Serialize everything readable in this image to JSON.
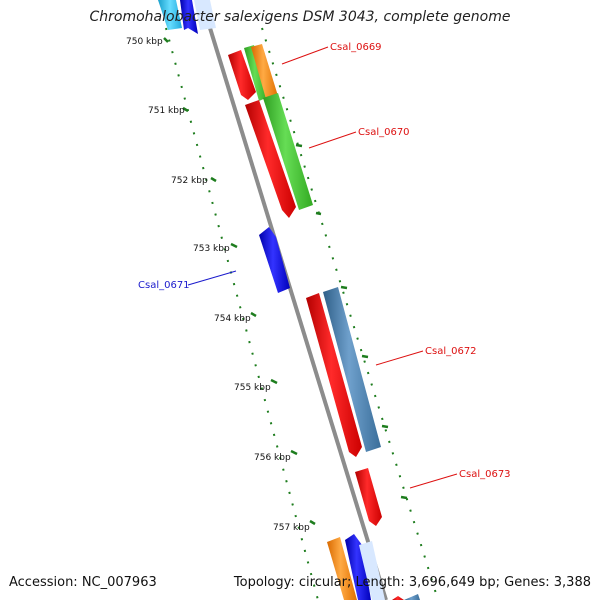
{
  "header": {
    "title": "Chromohalobacter salexigens DSM 3043, complete genome"
  },
  "footer": {
    "accession": "Accession: NC_007963",
    "summary": "Topology: circular; Length: 3,696,649 bp; Genes: 3,388"
  },
  "colors": {
    "backbone": "#8c8c8c",
    "tick_green": "#1e7d1e",
    "red": "#ee1111",
    "green": "#44cc33",
    "orange": "#ff8c1a",
    "blue": "#1a1aee",
    "steel": "#4682b4",
    "cyan": "#33c8f0",
    "label_red": "#dd1111",
    "label_blue": "#1a1acc"
  },
  "scale": {
    "tick_labels": [
      "750 kbp",
      "751 kbp",
      "752 kbp",
      "753 kbp",
      "754 kbp",
      "755 kbp",
      "756 kbp",
      "757 kbp"
    ]
  },
  "genes": [
    {
      "label": "Csal_0669",
      "color": "label_red"
    },
    {
      "label": "Csal_0670",
      "color": "label_red"
    },
    {
      "label": "Csal_0671",
      "color": "label_blue"
    },
    {
      "label": "Csal_0672",
      "color": "label_red"
    },
    {
      "label": "Csal_0673",
      "color": "label_red"
    }
  ]
}
